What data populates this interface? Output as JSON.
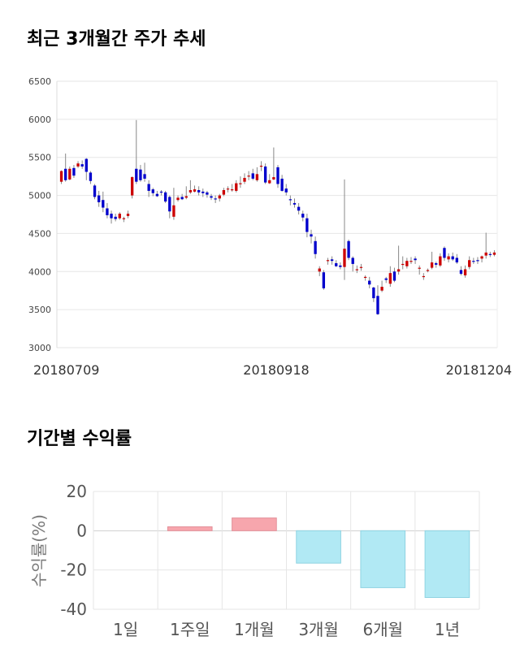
{
  "page": {
    "title_price": "최근 3개월간 주가 추세",
    "title_returns": "기간별 수익률"
  },
  "colors": {
    "up": "#cc0000",
    "down": "#0000cc",
    "grid": "#e6e6e6",
    "wick": "#888888",
    "positive_bar": "#f7a6ad",
    "negative_bar": "#b1e9f4"
  },
  "chart_data": [
    {
      "type": "candlestick",
      "title": "",
      "ylim": [
        3000,
        6500
      ],
      "y_ticks": [
        "6500",
        "6000",
        "5500",
        "5000",
        "4500",
        "4000",
        "3500",
        "3000"
      ],
      "x_tick_labels": [
        "20180709",
        "20180918",
        "20181204"
      ],
      "grid": true,
      "candles": [
        [
          5180,
          5320,
          5150,
          5330
        ],
        [
          5350,
          5200,
          5180,
          5550
        ],
        [
          5210,
          5350,
          5200,
          5380
        ],
        [
          5360,
          5260,
          5230,
          5400
        ],
        [
          5380,
          5420,
          5360,
          5450
        ],
        [
          5410,
          5380,
          5350,
          5460
        ],
        [
          5480,
          5310,
          5200,
          5490
        ],
        [
          5300,
          5190,
          5150,
          5320
        ],
        [
          5130,
          4980,
          4950,
          5150
        ],
        [
          5000,
          4910,
          4850,
          5060
        ],
        [
          4940,
          4840,
          4780,
          5050
        ],
        [
          4830,
          4740,
          4700,
          4900
        ],
        [
          4760,
          4700,
          4630,
          4800
        ],
        [
          4720,
          4690,
          4660,
          4760
        ],
        [
          4700,
          4760,
          4680,
          4780
        ],
        [
          4690,
          4700,
          4650,
          4720
        ],
        [
          4730,
          4760,
          4700,
          4800
        ],
        [
          5000,
          5240,
          4960,
          5250
        ],
        [
          5350,
          5180,
          5150,
          5990
        ],
        [
          5340,
          5200,
          5180,
          5400
        ],
        [
          5280,
          5220,
          5180,
          5430
        ],
        [
          5150,
          5060,
          4980,
          5200
        ],
        [
          5080,
          5030,
          4990,
          5100
        ],
        [
          5020,
          4990,
          4980,
          5060
        ],
        [
          5050,
          5040,
          5000,
          5070
        ],
        [
          5040,
          4920,
          4900,
          5060
        ],
        [
          4980,
          4790,
          4700,
          5000
        ],
        [
          4720,
          4870,
          4680,
          5100
        ],
        [
          4940,
          4970,
          4920,
          5000
        ],
        [
          4980,
          4950,
          4940,
          5020
        ],
        [
          4970,
          4990,
          4950,
          5120
        ],
        [
          5040,
          5070,
          5020,
          5200
        ],
        [
          5050,
          5080,
          5040,
          5130
        ],
        [
          5070,
          5040,
          5000,
          5120
        ],
        [
          5050,
          5030,
          4980,
          5090
        ],
        [
          5040,
          5010,
          4970,
          5060
        ],
        [
          4990,
          4970,
          4940,
          5020
        ],
        [
          4960,
          4950,
          4900,
          5000
        ],
        [
          4960,
          5000,
          4920,
          5020
        ],
        [
          5010,
          5070,
          4990,
          5100
        ],
        [
          5080,
          5090,
          5040,
          5120
        ],
        [
          5070,
          5080,
          5050,
          5150
        ],
        [
          5060,
          5160,
          5040,
          5200
        ],
        [
          5150,
          5160,
          5100,
          5250
        ],
        [
          5180,
          5230,
          5150,
          5290
        ],
        [
          5260,
          5260,
          5200,
          5320
        ],
        [
          5290,
          5220,
          5200,
          5350
        ],
        [
          5200,
          5280,
          5180,
          5370
        ],
        [
          5390,
          5390,
          5320,
          5450
        ],
        [
          5380,
          5170,
          5150,
          5420
        ],
        [
          5160,
          5200,
          5150,
          5280
        ],
        [
          5210,
          5240,
          5200,
          5630
        ],
        [
          5370,
          5150,
          5100,
          5400
        ],
        [
          5220,
          5060,
          5050,
          5270
        ],
        [
          5090,
          5040,
          5000,
          5150
        ],
        [
          4950,
          4940,
          4870,
          5000
        ],
        [
          4900,
          4880,
          4840,
          4960
        ],
        [
          4850,
          4800,
          4750,
          4900
        ],
        [
          4760,
          4710,
          4660,
          4800
        ],
        [
          4700,
          4520,
          4450,
          4760
        ],
        [
          4490,
          4460,
          4370,
          4550
        ],
        [
          4400,
          4230,
          4170,
          4460
        ],
        [
          4000,
          4040,
          3940,
          4070
        ],
        [
          3990,
          3780,
          3760,
          4020
        ],
        [
          4140,
          4150,
          4090,
          4180
        ],
        [
          4160,
          4140,
          4090,
          4200
        ],
        [
          4110,
          4070,
          4060,
          4150
        ],
        [
          4080,
          4060,
          4030,
          4120
        ],
        [
          4060,
          4300,
          3890,
          5210
        ],
        [
          4400,
          4180,
          4150,
          4420
        ],
        [
          4180,
          4100,
          4000,
          4200
        ],
        [
          4030,
          4030,
          3980,
          4080
        ],
        [
          4050,
          4060,
          4010,
          4100
        ],
        [
          3920,
          3930,
          3880,
          3950
        ],
        [
          3880,
          3830,
          3780,
          3930
        ],
        [
          3790,
          3650,
          3600,
          3800
        ],
        [
          3680,
          3440,
          3430,
          3820
        ],
        [
          3750,
          3800,
          3730,
          3880
        ],
        [
          3910,
          3890,
          3850,
          3930
        ],
        [
          3840,
          3980,
          3800,
          4070
        ],
        [
          4000,
          3880,
          3860,
          4050
        ],
        [
          4000,
          4030,
          3960,
          4340
        ],
        [
          4100,
          4100,
          4030,
          4200
        ],
        [
          4070,
          4140,
          4040,
          4180
        ],
        [
          4130,
          4140,
          4100,
          4190
        ],
        [
          4170,
          4150,
          4100,
          4200
        ],
        [
          4050,
          4050,
          3960,
          4080
        ],
        [
          3930,
          3940,
          3890,
          3980
        ],
        [
          4010,
          4020,
          3990,
          4040
        ],
        [
          4050,
          4120,
          4030,
          4260
        ],
        [
          4110,
          4090,
          4050,
          4130
        ],
        [
          4080,
          4200,
          4060,
          4240
        ],
        [
          4310,
          4180,
          4140,
          4330
        ],
        [
          4160,
          4200,
          4120,
          4240
        ],
        [
          4200,
          4160,
          4140,
          4250
        ],
        [
          4180,
          4120,
          4100,
          4230
        ],
        [
          4020,
          3970,
          3950,
          4070
        ],
        [
          3950,
          4030,
          3920,
          4080
        ],
        [
          4060,
          4150,
          4030,
          4200
        ],
        [
          4140,
          4130,
          4100,
          4180
        ],
        [
          4150,
          4140,
          4100,
          4190
        ],
        [
          4170,
          4200,
          4120,
          4210
        ],
        [
          4210,
          4250,
          4170,
          4510
        ],
        [
          4230,
          4220,
          4190,
          4260
        ],
        [
          4220,
          4250,
          4200,
          4280
        ]
      ]
    },
    {
      "type": "bar",
      "title": "",
      "ylabel": "수익률(%)",
      "ylim": [
        -40,
        20
      ],
      "y_ticks": [
        "20",
        "0",
        "-20",
        "-40"
      ],
      "categories": [
        "1일",
        "1주일",
        "1개월",
        "3개월",
        "6개월",
        "1년"
      ],
      "values": [
        0,
        2.0,
        6.5,
        -16.5,
        -29.0,
        -34.0
      ]
    }
  ]
}
